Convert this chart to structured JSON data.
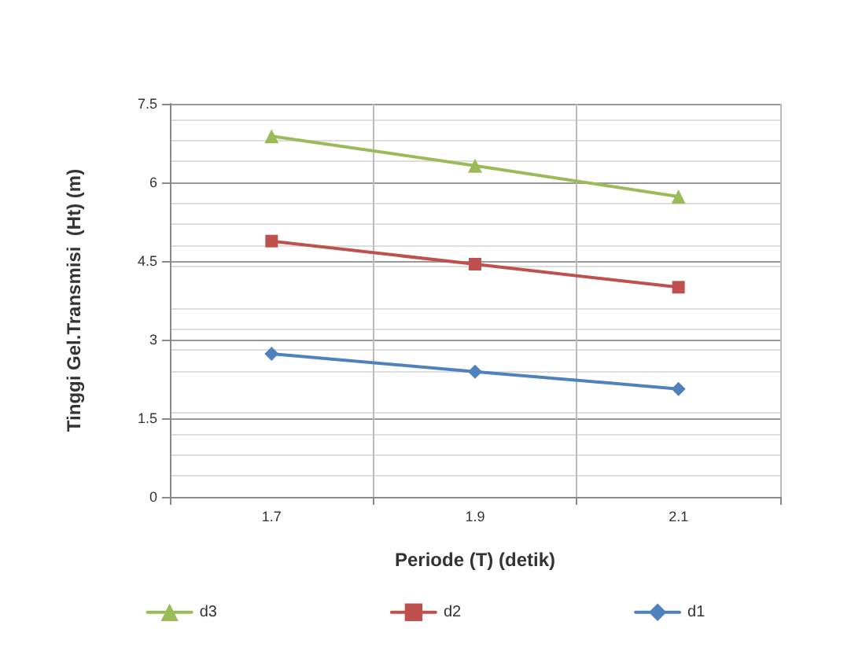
{
  "chart_data": {
    "type": "line",
    "xlabel": "Periode (T) (detik)",
    "ylabel": "Tinggi Gel.Transmisi  (Ht) (m)",
    "categories": [
      "1.7",
      "1.9",
      "2.1"
    ],
    "series": [
      {
        "name": "d3",
        "color": "#9bbb59",
        "marker": "triangle",
        "values": [
          6.88,
          6.32,
          5.73
        ]
      },
      {
        "name": "d2",
        "color": "#c0504d",
        "marker": "square",
        "values": [
          4.88,
          4.44,
          4.0
        ]
      },
      {
        "name": "d1",
        "color": "#4f81bd",
        "marker": "diamond",
        "values": [
          2.73,
          2.39,
          2.06
        ]
      }
    ],
    "ylim": [
      0,
      7.5
    ],
    "yticks": [
      0,
      1.5,
      3,
      4.5,
      6,
      7.5
    ],
    "grid": true,
    "legend": "bottom"
  }
}
